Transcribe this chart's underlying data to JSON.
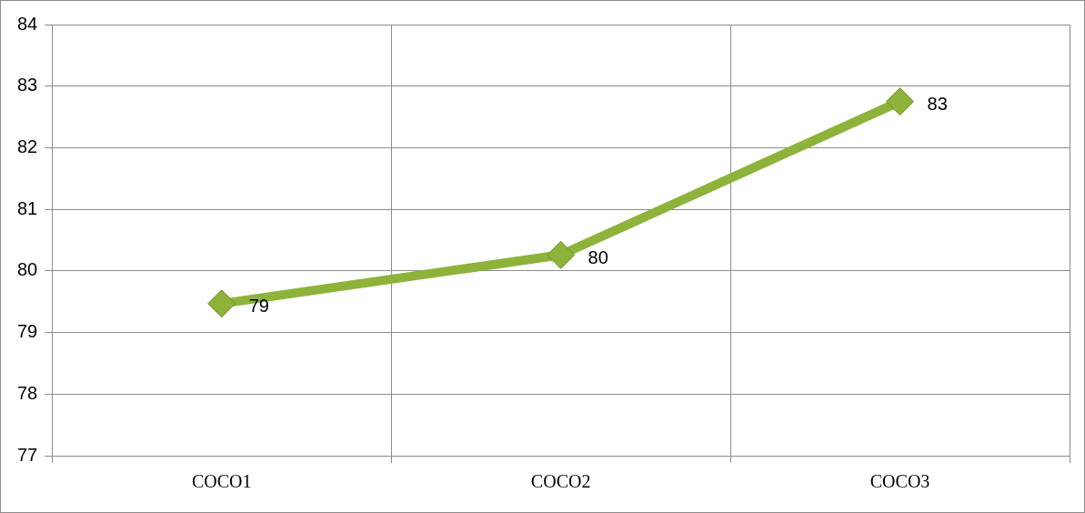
{
  "chart_data": {
    "type": "line",
    "categories": [
      "COCO1",
      "COCO2",
      "COCO3"
    ],
    "series": [
      {
        "color": "#8db33a",
        "values": [
          79.47,
          80.26,
          82.75
        ],
        "value_labels": [
          "79",
          "80",
          "83"
        ]
      }
    ],
    "ylim": [
      77,
      84
    ],
    "yticks": [
      77,
      78,
      79,
      80,
      81,
      82,
      83,
      84
    ],
    "grid": true,
    "legend": false,
    "marker": "diamond",
    "line_style": "solid"
  }
}
